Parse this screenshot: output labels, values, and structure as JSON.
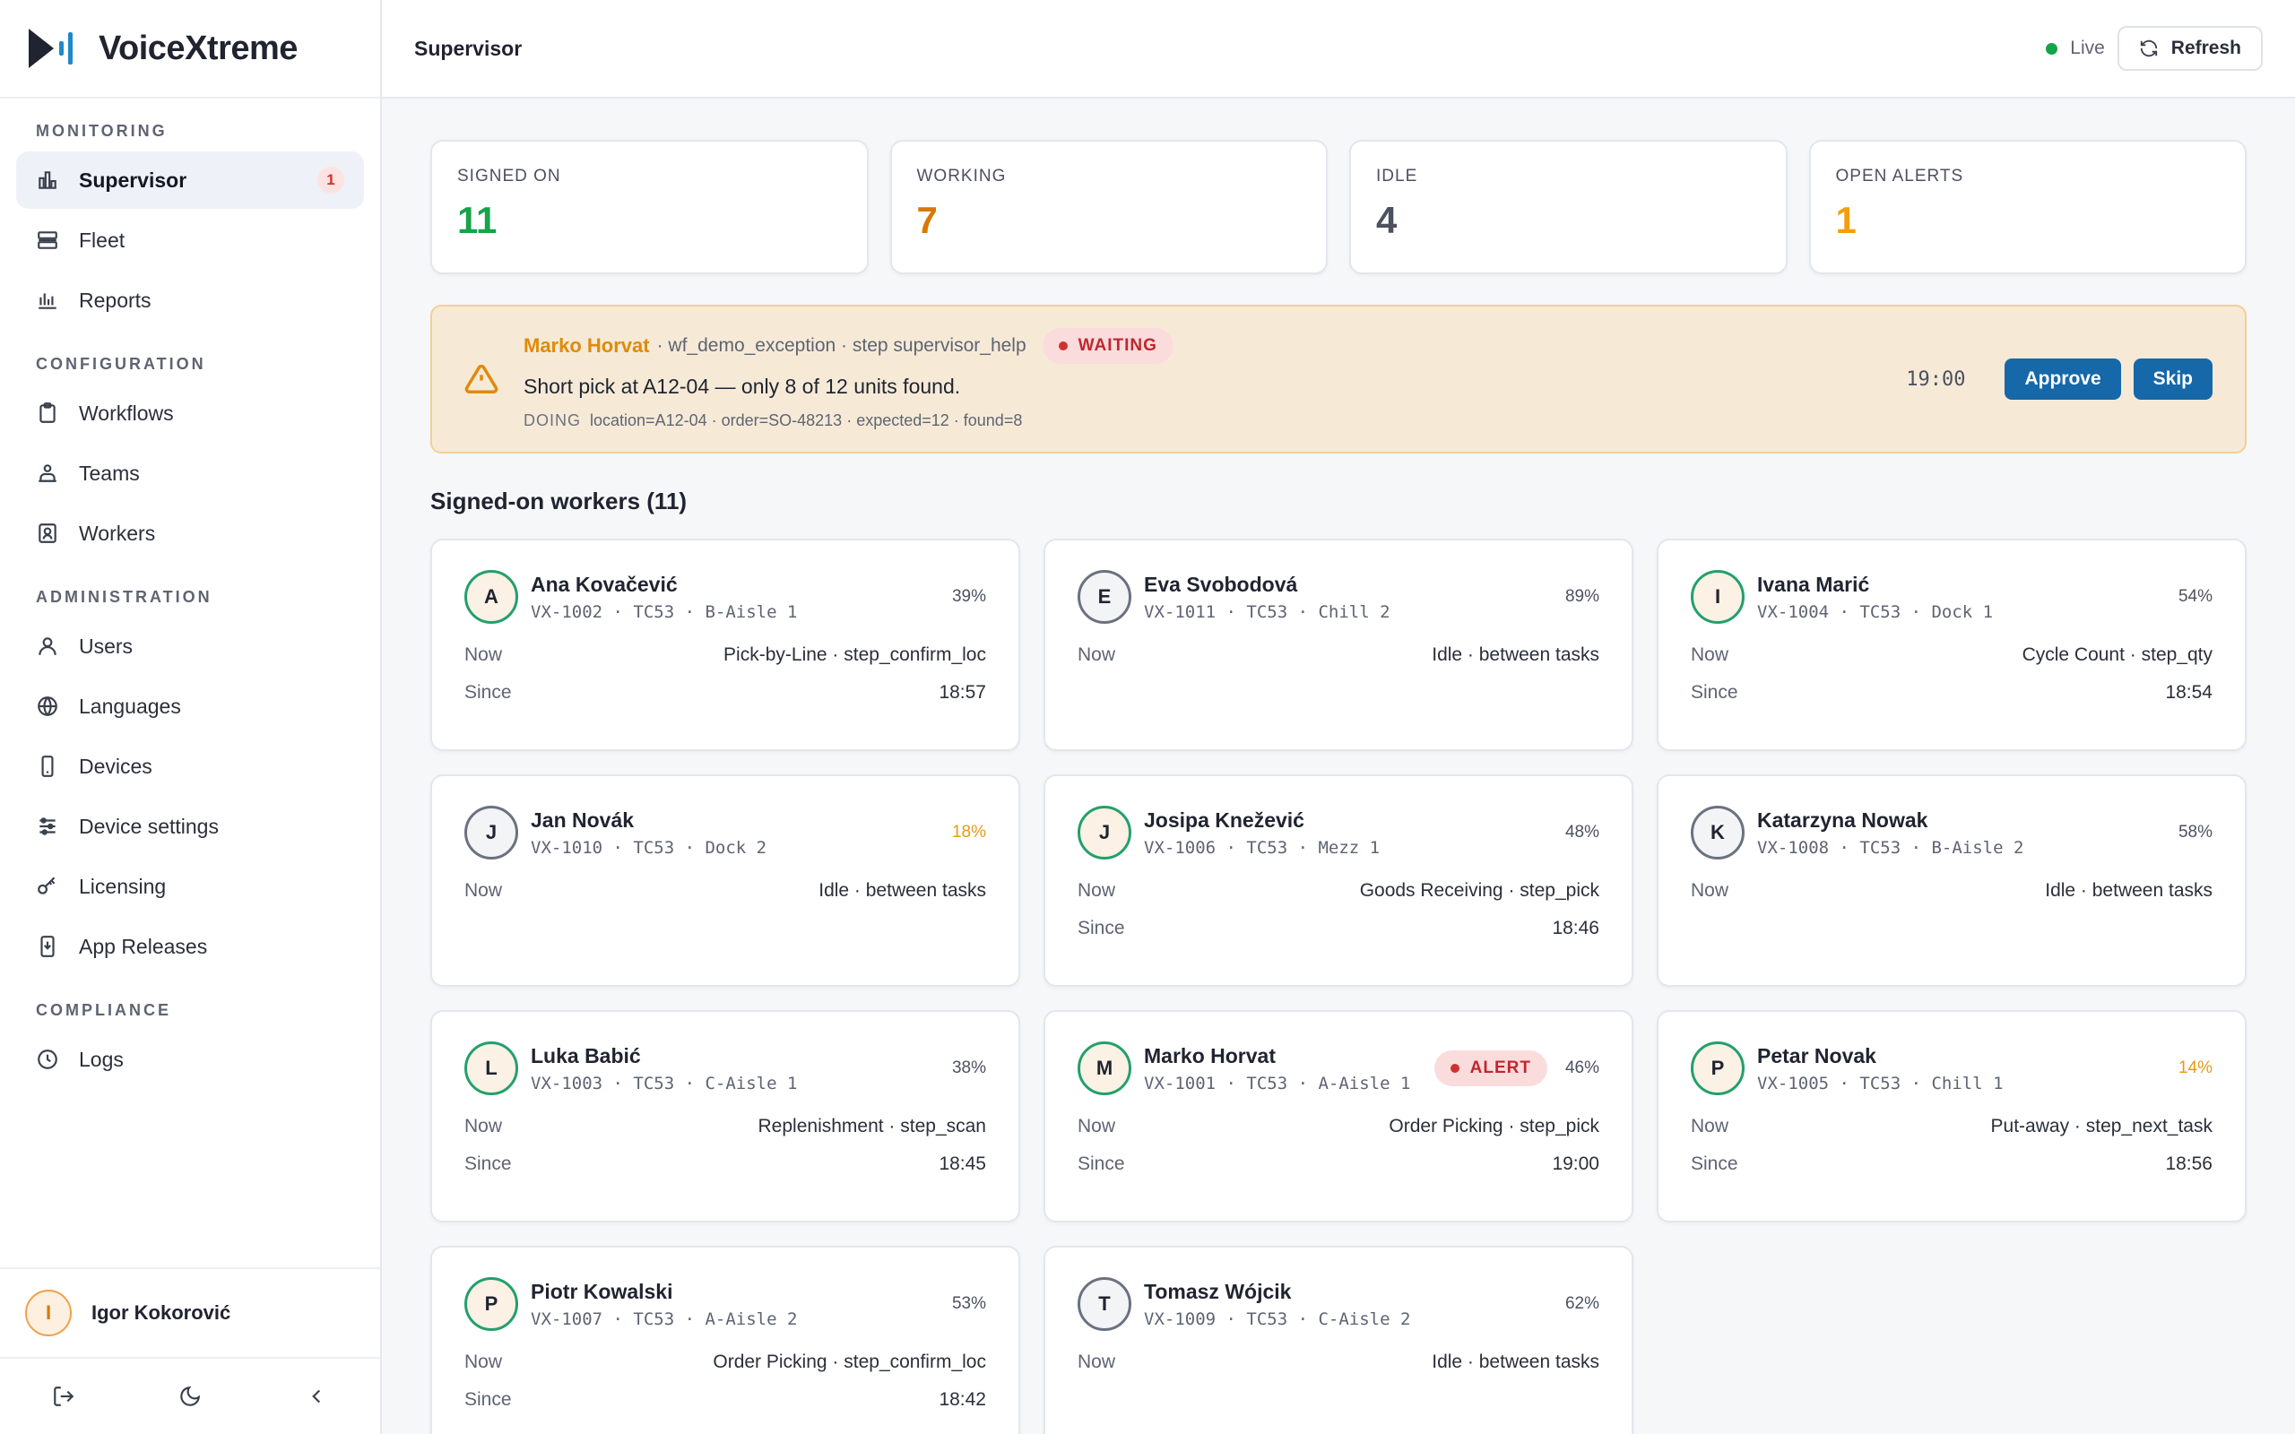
{
  "app": {
    "name": "VoiceXtreme"
  },
  "sidebar": {
    "sections": [
      {
        "heading": "MONITORING",
        "items": [
          {
            "label": "Supervisor",
            "icon": "bar-chart-icon",
            "active": true,
            "badge": "1"
          },
          {
            "label": "Fleet",
            "icon": "server-icon"
          },
          {
            "label": "Reports",
            "icon": "reports-icon"
          }
        ]
      },
      {
        "heading": "CONFIGURATION",
        "items": [
          {
            "label": "Workflows",
            "icon": "clipboard-icon"
          },
          {
            "label": "Teams",
            "icon": "team-icon"
          },
          {
            "label": "Workers",
            "icon": "worker-badge-icon"
          }
        ]
      },
      {
        "heading": "ADMINISTRATION",
        "items": [
          {
            "label": "Users",
            "icon": "user-icon"
          },
          {
            "label": "Languages",
            "icon": "globe-icon"
          },
          {
            "label": "Devices",
            "icon": "phone-icon"
          },
          {
            "label": "Device settings",
            "icon": "sliders-icon"
          },
          {
            "label": "Licensing",
            "icon": "key-icon"
          },
          {
            "label": "App Releases",
            "icon": "app-release-icon"
          }
        ]
      },
      {
        "heading": "COMPLIANCE",
        "items": [
          {
            "label": "Logs",
            "icon": "clock-icon"
          }
        ]
      }
    ],
    "user": {
      "initial": "I",
      "name": "Igor Kokorović"
    }
  },
  "topbar": {
    "title": "Supervisor",
    "live_label": "Live",
    "refresh_label": "Refresh"
  },
  "stats": [
    {
      "label": "SIGNED ON",
      "value": "11",
      "color": "#16a34a"
    },
    {
      "label": "WORKING",
      "value": "7",
      "color": "#d97706"
    },
    {
      "label": "IDLE",
      "value": "4",
      "color": "#4b5160"
    },
    {
      "label": "OPEN ALERTS",
      "value": "1",
      "color": "#f59e0b"
    }
  ],
  "alert": {
    "worker": "Marko Horvat",
    "context": "· wf_demo_exception · step supervisor_help",
    "status": "WAITING",
    "message": "Short pick at A12-04 — only 8 of 12 units found.",
    "kind": "DOING",
    "detail": "location=A12-04 · order=SO-48213 · expected=12 · found=8",
    "time": "19:00",
    "approve_label": "Approve",
    "skip_label": "Skip"
  },
  "workers_title": "Signed-on workers (11)",
  "labels": {
    "now": "Now",
    "since": "Since",
    "alert": "ALERT"
  },
  "workers": [
    {
      "initial": "A",
      "name": "Ana Kovačević",
      "meta": "VX-1002 · TC53 · B-Aisle 1",
      "battery": "39%",
      "low": false,
      "on": true,
      "now": "Pick-by-Line · step_confirm_loc",
      "since": "18:57"
    },
    {
      "initial": "E",
      "name": "Eva Svobodová",
      "meta": "VX-1011 · TC53 · Chill 2",
      "battery": "89%",
      "low": false,
      "on": false,
      "now": "Idle · between tasks",
      "since": null
    },
    {
      "initial": "I",
      "name": "Ivana Marić",
      "meta": "VX-1004 · TC53 · Dock 1",
      "battery": "54%",
      "low": false,
      "on": true,
      "now": "Cycle Count · step_qty",
      "since": "18:54"
    },
    {
      "initial": "J",
      "name": "Jan Novák",
      "meta": "VX-1010 · TC53 · Dock 2",
      "battery": "18%",
      "low": true,
      "on": false,
      "now": "Idle · between tasks",
      "since": null
    },
    {
      "initial": "J",
      "name": "Josipa Knežević",
      "meta": "VX-1006 · TC53 · Mezz 1",
      "battery": "48%",
      "low": false,
      "on": true,
      "now": "Goods Receiving · step_pick",
      "since": "18:46"
    },
    {
      "initial": "K",
      "name": "Katarzyna Nowak",
      "meta": "VX-1008 · TC53 · B-Aisle 2",
      "battery": "58%",
      "low": false,
      "on": false,
      "now": "Idle · between tasks",
      "since": null
    },
    {
      "initial": "L",
      "name": "Luka Babić",
      "meta": "VX-1003 · TC53 · C-Aisle 1",
      "battery": "38%",
      "low": false,
      "on": true,
      "now": "Replenishment · step_scan",
      "since": "18:45"
    },
    {
      "initial": "M",
      "name": "Marko Horvat",
      "meta": "VX-1001 · TC53 · A-Aisle 1",
      "battery": "46%",
      "low": false,
      "on": true,
      "alert": true,
      "now": "Order Picking · step_pick",
      "since": "19:00"
    },
    {
      "initial": "P",
      "name": "Petar Novak",
      "meta": "VX-1005 · TC53 · Chill 1",
      "battery": "14%",
      "low": true,
      "on": true,
      "now": "Put-away · step_next_task",
      "since": "18:56"
    },
    {
      "initial": "P",
      "name": "Piotr Kowalski",
      "meta": "VX-1007 · TC53 · A-Aisle 2",
      "battery": "53%",
      "low": false,
      "on": true,
      "now": "Order Picking · step_confirm_loc",
      "since": "18:42"
    },
    {
      "initial": "T",
      "name": "Tomasz Wójcik",
      "meta": "VX-1009 · TC53 · C-Aisle 2",
      "battery": "62%",
      "low": false,
      "on": false,
      "now": "Idle · between tasks",
      "since": null
    }
  ]
}
